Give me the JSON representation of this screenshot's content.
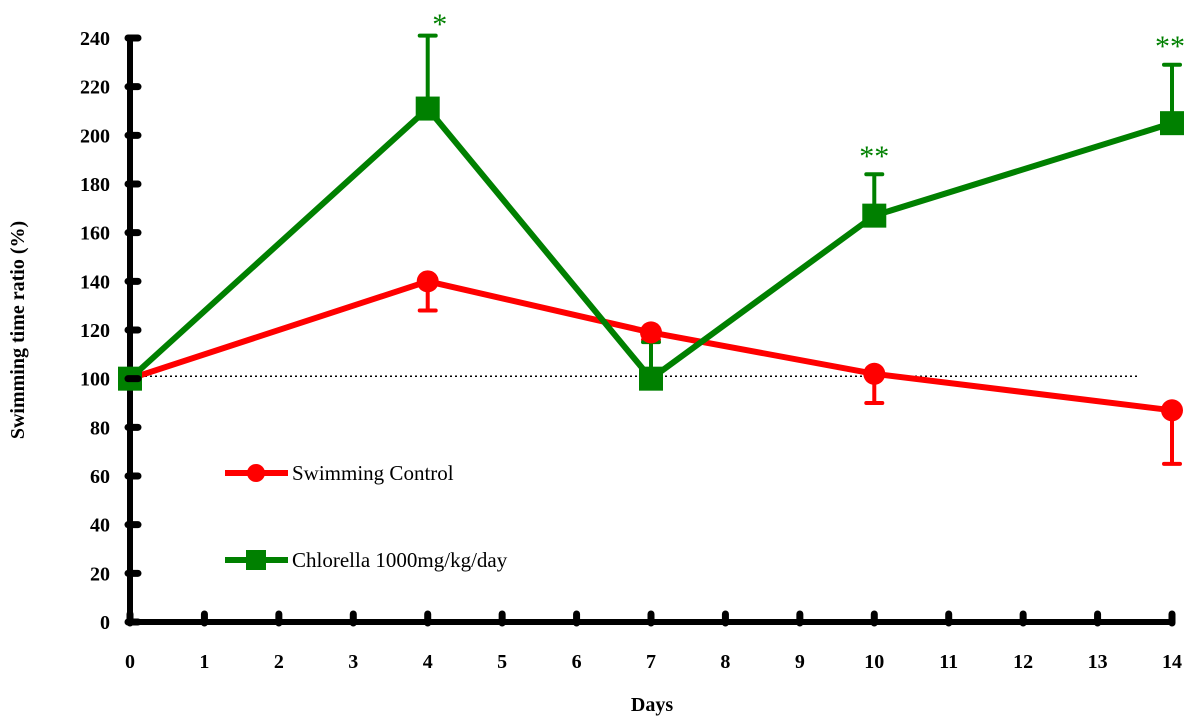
{
  "chart_data": {
    "type": "line",
    "title": "",
    "xlabel": "Days",
    "ylabel": "Swimming time ratio (%)",
    "x_ticks": [
      0,
      1,
      2,
      3,
      4,
      5,
      6,
      7,
      8,
      9,
      10,
      11,
      12,
      13,
      14
    ],
    "y_ticks": [
      0,
      20,
      40,
      60,
      80,
      100,
      120,
      140,
      160,
      180,
      200,
      220,
      240
    ],
    "xlim": [
      0,
      14
    ],
    "ylim": [
      0,
      240
    ],
    "reference_line": {
      "y": 101,
      "style": "dotted"
    },
    "grid": false,
    "legend_position": "lower-left",
    "series": [
      {
        "name": "Swimming Control",
        "color": "#ff0000",
        "marker": "circle",
        "x": [
          0,
          4,
          7,
          10,
          14
        ],
        "y": [
          100,
          140,
          119,
          102,
          87
        ],
        "error_low": [
          null,
          128,
          null,
          90,
          65
        ],
        "error_high": [
          null,
          null,
          116,
          null,
          null
        ]
      },
      {
        "name": "Chlorella 1000mg/kg/day",
        "color": "#008000",
        "marker": "square",
        "x": [
          0,
          4,
          7,
          10,
          14
        ],
        "y": [
          100,
          211,
          100,
          167,
          205
        ],
        "error_high": [
          null,
          241,
          115,
          184,
          229
        ]
      }
    ],
    "annotations": [
      {
        "x": 4,
        "text": "*",
        "color": "#008000"
      },
      {
        "x": 10,
        "text": "**",
        "color": "#008000"
      },
      {
        "x": 14,
        "text": "**",
        "color": "#008000"
      }
    ]
  }
}
